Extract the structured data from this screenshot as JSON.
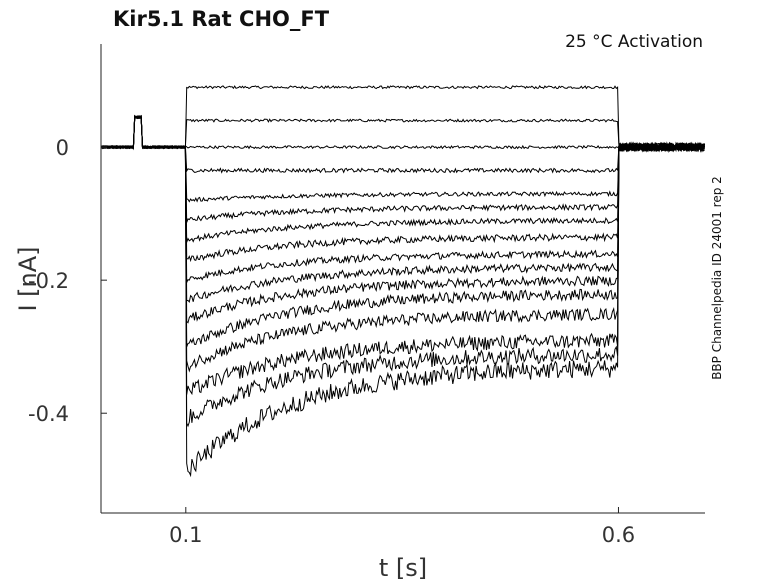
{
  "chart_data": {
    "type": "line",
    "title": "Kir5.1  Rat  CHO_FT",
    "annotation": "25 °C  Activation",
    "side_label": "BBP Channelpedia ID 24001 rep 2",
    "xlabel": "t [s]",
    "ylabel": "I [nA]",
    "xlim": [
      0.002,
      0.7
    ],
    "ylim": [
      -0.55,
      0.155
    ],
    "x_ticks": [
      0.1,
      0.6
    ],
    "x_tick_labels": [
      "0.1",
      "0.6"
    ],
    "y_ticks": [
      0,
      -0.2,
      -0.4
    ],
    "y_tick_labels": [
      "0",
      "-0.2",
      "-0.4"
    ],
    "grid": false,
    "line_color": "#000000",
    "pulse_window": [
      0.1,
      0.6
    ],
    "prepulse": {
      "start": 0.04,
      "end": 0.05,
      "value": 0.045
    },
    "series": [
      {
        "peak": 0.09,
        "steady": 0.09,
        "noise": 0.002
      },
      {
        "peak": 0.04,
        "steady": 0.04,
        "noise": 0.002
      },
      {
        "peak": 0.0,
        "steady": 0.0,
        "noise": 0.002
      },
      {
        "peak": -0.035,
        "steady": -0.035,
        "noise": 0.003
      },
      {
        "peak": -0.08,
        "steady": -0.07,
        "noise": 0.003
      },
      {
        "peak": -0.11,
        "steady": -0.09,
        "noise": 0.004
      },
      {
        "peak": -0.14,
        "steady": -0.11,
        "noise": 0.004
      },
      {
        "peak": -0.17,
        "steady": -0.135,
        "noise": 0.005
      },
      {
        "peak": -0.2,
        "steady": -0.16,
        "noise": 0.005
      },
      {
        "peak": -0.23,
        "steady": -0.18,
        "noise": 0.006
      },
      {
        "peak": -0.26,
        "steady": -0.2,
        "noise": 0.007
      },
      {
        "peak": -0.3,
        "steady": -0.22,
        "noise": 0.008
      },
      {
        "peak": -0.33,
        "steady": -0.25,
        "noise": 0.009
      },
      {
        "peak": -0.37,
        "steady": -0.29,
        "noise": 0.011
      },
      {
        "peak": -0.41,
        "steady": -0.31,
        "noise": 0.012
      },
      {
        "peak": -0.49,
        "steady": -0.33,
        "noise": 0.014
      }
    ]
  }
}
